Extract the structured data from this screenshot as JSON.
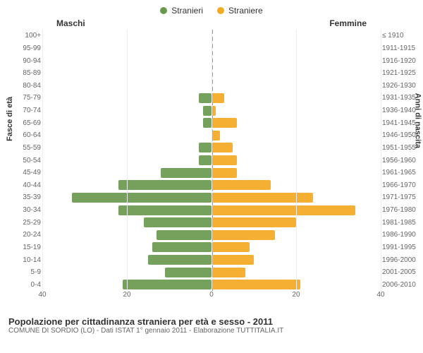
{
  "chart": {
    "type": "population-pyramid",
    "legend": [
      {
        "label": "Stranieri",
        "color": "#6a994e"
      },
      {
        "label": "Straniere",
        "color": "#f4a923"
      }
    ],
    "header_left": "Maschi",
    "header_right": "Femmine",
    "yaxis_left_title": "Fasce di età",
    "yaxis_right_title": "Anni di nascita",
    "male_color": "#6a994e",
    "female_color": "#f4a923",
    "bar_opacity": 0.92,
    "background_color": "#ffffff",
    "grid_color": "#eeeeee",
    "center_line_color": "#999999",
    "x_max": 40,
    "x_ticks_left": [
      40,
      20,
      0
    ],
    "x_ticks_right": [
      0,
      20,
      40
    ],
    "rows": [
      {
        "age": "100+",
        "birth": "≤ 1910",
        "m": 0,
        "f": 0
      },
      {
        "age": "95-99",
        "birth": "1911-1915",
        "m": 0,
        "f": 0
      },
      {
        "age": "90-94",
        "birth": "1916-1920",
        "m": 0,
        "f": 0
      },
      {
        "age": "85-89",
        "birth": "1921-1925",
        "m": 0,
        "f": 0
      },
      {
        "age": "80-84",
        "birth": "1926-1930",
        "m": 0,
        "f": 0
      },
      {
        "age": "75-79",
        "birth": "1931-1935",
        "m": 3,
        "f": 3
      },
      {
        "age": "70-74",
        "birth": "1936-1940",
        "m": 2,
        "f": 1
      },
      {
        "age": "65-69",
        "birth": "1941-1945",
        "m": 2,
        "f": 6
      },
      {
        "age": "60-64",
        "birth": "1946-1950",
        "m": 0,
        "f": 2
      },
      {
        "age": "55-59",
        "birth": "1951-1955",
        "m": 3,
        "f": 5
      },
      {
        "age": "50-54",
        "birth": "1956-1960",
        "m": 3,
        "f": 6
      },
      {
        "age": "45-49",
        "birth": "1961-1965",
        "m": 12,
        "f": 6
      },
      {
        "age": "40-44",
        "birth": "1966-1970",
        "m": 22,
        "f": 14
      },
      {
        "age": "35-39",
        "birth": "1971-1975",
        "m": 33,
        "f": 24
      },
      {
        "age": "30-34",
        "birth": "1976-1980",
        "m": 22,
        "f": 34
      },
      {
        "age": "25-29",
        "birth": "1981-1985",
        "m": 16,
        "f": 20
      },
      {
        "age": "20-24",
        "birth": "1986-1990",
        "m": 13,
        "f": 15
      },
      {
        "age": "15-19",
        "birth": "1991-1995",
        "m": 14,
        "f": 9
      },
      {
        "age": "10-14",
        "birth": "1996-2000",
        "m": 15,
        "f": 10
      },
      {
        "age": "5-9",
        "birth": "2001-2005",
        "m": 11,
        "f": 8
      },
      {
        "age": "0-4",
        "birth": "2006-2010",
        "m": 21,
        "f": 21
      }
    ],
    "caption_title": "Popolazione per cittadinanza straniera per età e sesso - 2011",
    "caption_sub": "COMUNE DI SORDIO (LO) - Dati ISTAT 1° gennaio 2011 - Elaborazione TUTTITALIA.IT"
  }
}
